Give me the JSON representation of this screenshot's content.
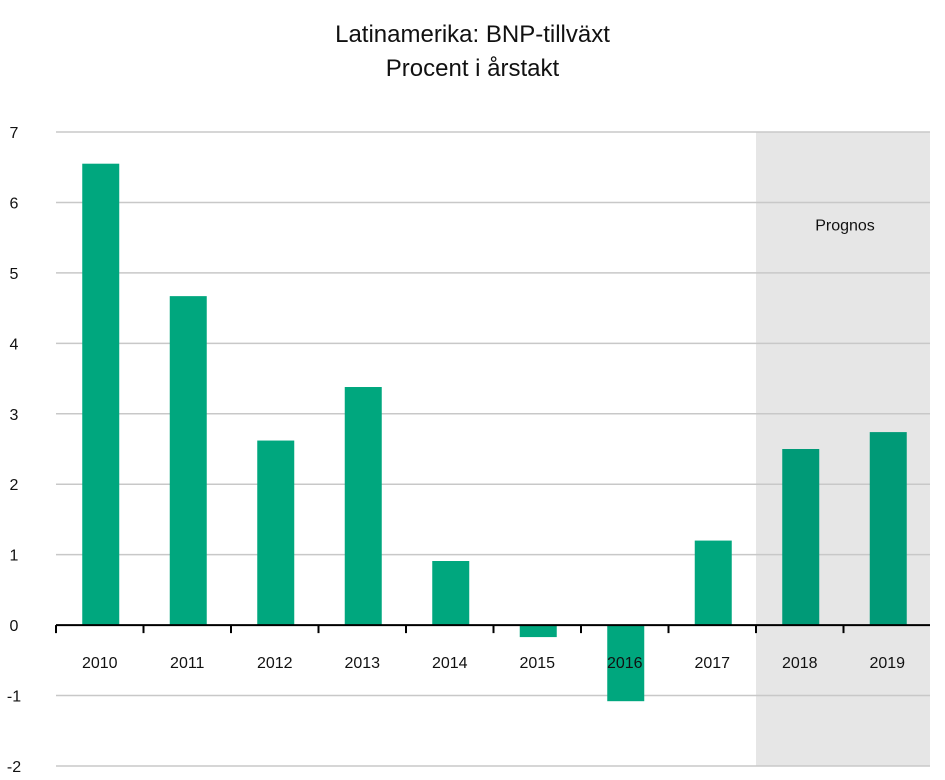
{
  "chart_data": {
    "type": "bar",
    "title": "Latinamerika: BNP-tillväxt",
    "subtitle": "Procent i årstakt",
    "categories": [
      "2010",
      "2011",
      "2012",
      "2013",
      "2014",
      "2015",
      "2016",
      "2017",
      "2018",
      "2019"
    ],
    "values": [
      6.55,
      4.67,
      2.62,
      3.38,
      0.91,
      -0.17,
      -1.08,
      1.2,
      2.5,
      2.74
    ],
    "forecast": {
      "label": "Prognos",
      "categories": [
        "2018",
        "2019"
      ]
    },
    "ylim": [
      -2,
      7
    ],
    "yticks": [
      "-2",
      "-1",
      "0",
      "1",
      "2",
      "3",
      "4",
      "5",
      "6",
      "7"
    ],
    "grid": true,
    "colors": {
      "bar": "#00a77e",
      "bar_forecast": "#009a77",
      "forecast_band": "#e6e6e6",
      "grid": "#c8c8c8",
      "axis": "#000000"
    }
  }
}
